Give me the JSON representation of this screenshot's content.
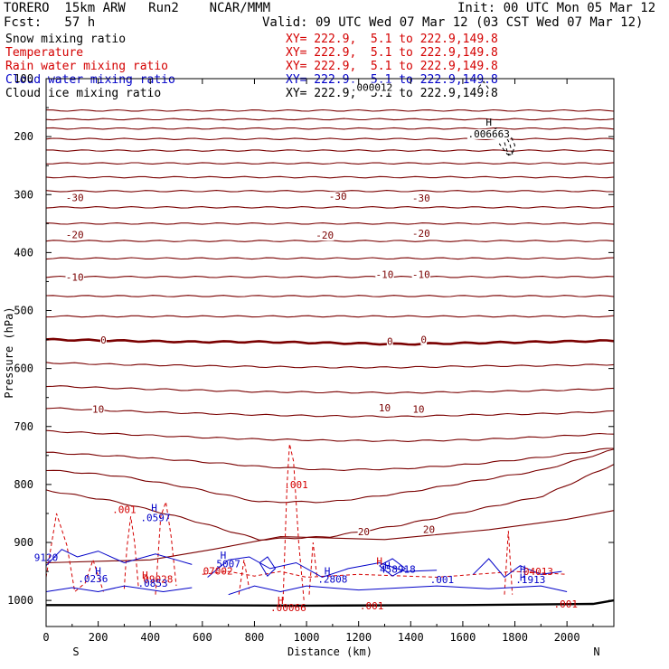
{
  "header": {
    "model": "TORERO  15km ARW   Run2    NCAR/MMM",
    "init": "Init: 00 UTC Mon 05 Mar 12",
    "fcst": "Fcst:   57 h",
    "valid": "Valid: 09 UTC Wed 07 Mar 12 (03 CST Wed 07 Mar 12)"
  },
  "legend": [
    {
      "label": "Snow mixing ratio",
      "xy": "XY= 222.9,  5.1 to 222.9,149.8",
      "label_color": "#000000",
      "xy_color": "#d40000"
    },
    {
      "label": "Temperature",
      "xy": "XY= 222.9,  5.1 to 222.9,149.8",
      "label_color": "#d40000",
      "xy_color": "#d40000"
    },
    {
      "label": "Rain water mixing ratio",
      "xy": "XY= 222.9,  5.1 to 222.9,149.8",
      "label_color": "#d40000",
      "xy_color": "#d40000"
    },
    {
      "label": "Cloud water mixing ratio",
      "xy": "XY= 222.9,  5.1 to 222.9,149.8",
      "label_color": "#0000c8",
      "xy_color": "#0000c8"
    },
    {
      "label": "Cloud ice mixing ratio",
      "xy": "XY= 222.9,  5.1 to 222.9,149.8",
      "label_color": "#000000",
      "xy_color": "#000000"
    }
  ],
  "colors": {
    "temperature": "#7a0000",
    "rain": "#d40000",
    "cloud_water": "#0000c8",
    "ice": "#000000",
    "freezing": "#7a0000"
  },
  "chart_data": {
    "type": "line",
    "title": "",
    "xlabel": "Distance (km)",
    "ylabel": "Pressure (hPa)",
    "xlim": [
      0,
      2180
    ],
    "ylim": [
      1045,
      100
    ],
    "y_scale": "linear-inverted",
    "x_ticks": [
      0,
      200,
      400,
      600,
      800,
      1000,
      1200,
      1400,
      1600,
      1800,
      2000
    ],
    "y_ticks": [
      100,
      200,
      300,
      400,
      500,
      600,
      700,
      800,
      900,
      1000
    ],
    "x_end_labels": {
      "left": "S",
      "right": "N"
    },
    "grid": false,
    "temperature_isotherms": [
      {
        "p0": 155,
        "dp": [
          0,
          0,
          0,
          0,
          0,
          0,
          0,
          0,
          0
        ]
      },
      {
        "p0": 170,
        "dp": [
          0,
          0,
          0,
          0,
          0,
          0,
          0,
          0,
          0
        ]
      },
      {
        "p0": 186,
        "dp": [
          0,
          0,
          0,
          0,
          0,
          0,
          0,
          0,
          0
        ]
      },
      {
        "p0": 204,
        "dp": [
          0,
          0,
          0,
          0,
          0,
          0,
          0,
          0,
          0
        ]
      },
      {
        "p0": 224,
        "dp": [
          0,
          0,
          0,
          0,
          0,
          0,
          0,
          0,
          0
        ]
      },
      {
        "p0": 246,
        "dp": [
          0,
          0,
          0,
          0,
          0,
          0,
          0,
          0,
          0
        ]
      },
      {
        "p0": 270,
        "dp": [
          0,
          0,
          0,
          0,
          0,
          0,
          0,
          0,
          0
        ]
      },
      {
        "p0": 294,
        "dp": [
          0,
          0,
          0,
          0,
          0,
          0,
          0,
          0,
          0
        ]
      },
      {
        "p0": 322,
        "dp": [
          0,
          0,
          0,
          0,
          0,
          0,
          0,
          0,
          0
        ]
      },
      {
        "p0": 350,
        "dp": [
          0,
          0,
          0,
          0,
          0,
          0,
          0,
          0,
          0
        ]
      },
      {
        "p0": 380,
        "dp": [
          0,
          0,
          0,
          0,
          0,
          0,
          0,
          0,
          0
        ]
      },
      {
        "p0": 410,
        "dp": [
          0,
          0,
          0,
          0,
          0,
          0,
          0,
          0,
          0
        ]
      },
      {
        "p0": 442,
        "dp": [
          0,
          0,
          0,
          0,
          0,
          0,
          0,
          0,
          0
        ]
      },
      {
        "p0": 475,
        "dp": [
          0,
          0,
          0,
          0,
          0,
          0,
          0,
          0,
          0
        ]
      },
      {
        "p0": 510,
        "dp": [
          0,
          0,
          0,
          0,
          0,
          0,
          0,
          0,
          0
        ]
      },
      {
        "p0": 550,
        "dp": [
          0,
          2,
          4,
          4,
          6,
          8,
          6,
          4,
          2
        ],
        "level": 0
      },
      {
        "p0": 590,
        "dp": [
          0,
          3,
          5,
          7,
          8,
          8,
          6,
          5,
          3
        ]
      },
      {
        "p0": 630,
        "dp": [
          0,
          4,
          7,
          10,
          11,
          12,
          10,
          8,
          5
        ]
      },
      {
        "p0": 668,
        "dp": [
          0,
          5,
          9,
          12,
          14,
          15,
          12,
          10,
          6
        ]
      },
      {
        "p0": 708,
        "dp": [
          0,
          5,
          10,
          14,
          16,
          17,
          15,
          10,
          4
        ]
      },
      {
        "p0": 745,
        "dp": [
          0,
          6,
          14,
          24,
          30,
          28,
          20,
          8,
          -8
        ]
      },
      {
        "p0": 775,
        "dp": [
          0,
          10,
          30,
          55,
          55,
          40,
          20,
          0,
          -35
        ]
      },
      {
        "p0": 810,
        "dp": [
          0,
          20,
          50,
          85,
          80,
          60,
          35,
          10,
          -45
        ]
      }
    ],
    "temperature_labels": [
      {
        "x": 110,
        "p": 305,
        "text": "-30"
      },
      {
        "x": 1120,
        "p": 303,
        "text": "-30"
      },
      {
        "x": 1440,
        "p": 306,
        "text": "-30"
      },
      {
        "x": 110,
        "p": 369,
        "text": "-20"
      },
      {
        "x": 1070,
        "p": 370,
        "text": "-20"
      },
      {
        "x": 1440,
        "p": 367,
        "text": "-20"
      },
      {
        "x": 110,
        "p": 442,
        "text": "-10"
      },
      {
        "x": 1300,
        "p": 438,
        "text": "-10"
      },
      {
        "x": 1440,
        "p": 438,
        "text": "-10"
      },
      {
        "x": 220,
        "p": 551,
        "text": "0"
      },
      {
        "x": 1320,
        "p": 553,
        "text": "0"
      },
      {
        "x": 1450,
        "p": 550,
        "text": "0"
      },
      {
        "x": 200,
        "p": 670,
        "text": "10"
      },
      {
        "x": 1300,
        "p": 668,
        "text": "10"
      },
      {
        "x": 1430,
        "p": 670,
        "text": "10"
      },
      {
        "x": 1220,
        "p": 881,
        "text": "20"
      },
      {
        "x": 1470,
        "p": 877,
        "text": "20"
      }
    ],
    "rain_labels": [
      {
        "x": 960,
        "p": 800,
        "text": ".001"
      },
      {
        "x": 300,
        "p": 843,
        "text": ".001"
      },
      {
        "x": 430,
        "p": 963,
        "text": "09028"
      },
      {
        "x": 660,
        "p": 949,
        "text": "07002"
      },
      {
        "x": 930,
        "p": 1012,
        "text": ".00066"
      },
      {
        "x": 1250,
        "p": 1009,
        "text": ".001"
      },
      {
        "x": 1890,
        "p": 950,
        "text": "04013"
      },
      {
        "x": 1995,
        "p": 1006,
        "text": ".001"
      }
    ],
    "cloud_water_labels": [
      {
        "x": 420,
        "p": 857,
        "text": ".0597"
      },
      {
        "x": 0,
        "p": 926,
        "text": "9120"
      },
      {
        "x": 180,
        "p": 962,
        "text": ".0236"
      },
      {
        "x": 410,
        "p": 970,
        "text": ".0853"
      },
      {
        "x": 700,
        "p": 937,
        "text": "5007"
      },
      {
        "x": 1100,
        "p": 963,
        "text": ".2808"
      },
      {
        "x": 1350,
        "p": 946,
        "text": "458918"
      },
      {
        "x": 1520,
        "p": 964,
        "text": ".001"
      },
      {
        "x": 1860,
        "p": 964,
        "text": ".1913"
      }
    ],
    "ice_labels": [
      {
        "x": 1250,
        "p": 115,
        "text": ".000012"
      },
      {
        "x": 1700,
        "p": 195,
        "text": ".006663"
      }
    ],
    "high_markers": [
      {
        "x": 415,
        "p": 840,
        "color": "cloud_water"
      },
      {
        "x": 680,
        "p": 922,
        "color": "cloud_water"
      },
      {
        "x": 200,
        "p": 949,
        "color": "cloud_water"
      },
      {
        "x": 380,
        "p": 956,
        "color": "rain"
      },
      {
        "x": 1080,
        "p": 949,
        "color": "cloud_water"
      },
      {
        "x": 1280,
        "p": 932,
        "color": "rain"
      },
      {
        "x": 1310,
        "p": 940,
        "color": "cloud_water"
      },
      {
        "x": 1830,
        "p": 946,
        "color": "cloud_water"
      },
      {
        "x": 1830,
        "p": 960,
        "color": "cloud_water"
      },
      {
        "x": 900,
        "p": 1000,
        "color": "rain"
      },
      {
        "x": 1700,
        "p": 175,
        "color": "ice"
      }
    ]
  }
}
